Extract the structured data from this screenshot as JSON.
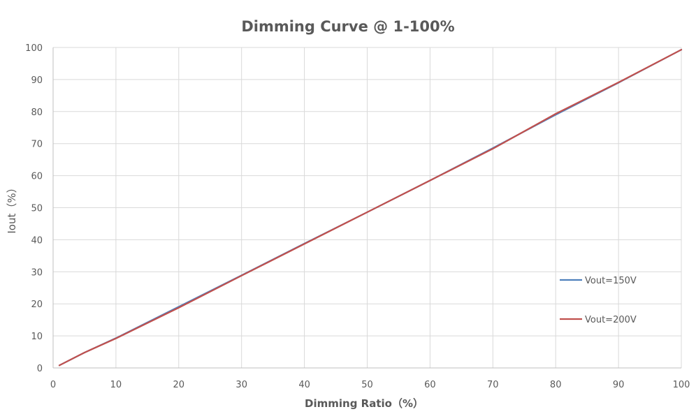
{
  "chart_data": {
    "type": "line",
    "title": "Dimming Curve @ 1-100%",
    "xlabel": "Dimming Ratio（%）",
    "ylabel": "Iout（%）",
    "xlim": [
      0,
      100
    ],
    "ylim": [
      0,
      100
    ],
    "x_ticks": [
      0,
      10,
      20,
      30,
      40,
      50,
      60,
      70,
      80,
      90,
      100
    ],
    "y_ticks": [
      0,
      10,
      20,
      30,
      40,
      50,
      60,
      70,
      80,
      90,
      100
    ],
    "grid": true,
    "legend_position": "right",
    "series": [
      {
        "name": "Vout=150V",
        "color": "#4f81bd",
        "x": [
          1,
          5,
          10,
          20,
          30,
          40,
          50,
          60,
          70,
          80,
          90,
          100
        ],
        "y": [
          0.8,
          4.8,
          9.3,
          19.1,
          28.9,
          38.8,
          48.6,
          58.5,
          68.6,
          79.0,
          89.0,
          99.3
        ]
      },
      {
        "name": "Vout=200V",
        "color": "#c0504d",
        "x": [
          1,
          5,
          10,
          20,
          30,
          40,
          50,
          60,
          70,
          80,
          90,
          100
        ],
        "y": [
          0.8,
          4.8,
          9.2,
          18.8,
          28.8,
          38.7,
          48.6,
          58.5,
          68.4,
          79.3,
          89.1,
          99.3
        ]
      }
    ]
  }
}
